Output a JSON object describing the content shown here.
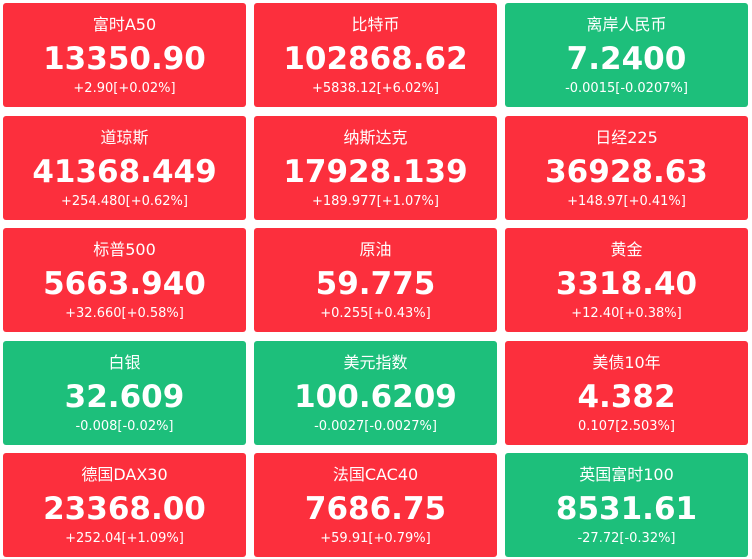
{
  "tiles": [
    {
      "name": "富时A50",
      "price": "13350.90",
      "change": "+2.90[+0.02%]",
      "color": "#fc2f3d"
    },
    {
      "name": "比特币",
      "price": "102868.62",
      "change": "+5838.12[+6.02%]",
      "color": "#fc2f3d"
    },
    {
      "name": "离岸人民币",
      "price": "7.2400",
      "change": "-0.0015[-0.0207%]",
      "color": "#1dbf7b"
    },
    {
      "name": "道琼斯",
      "price": "41368.449",
      "change": "+254.480[+0.62%]",
      "color": "#fc2f3d"
    },
    {
      "name": "纳斯达克",
      "price": "17928.139",
      "change": "+189.977[+1.07%]",
      "color": "#fc2f3d"
    },
    {
      "name": "日经225",
      "price": "36928.63",
      "change": "+148.97[+0.41%]",
      "color": "#fc2f3d"
    },
    {
      "name": "标普500",
      "price": "5663.940",
      "change": "+32.660[+0.58%]",
      "color": "#fc2f3d"
    },
    {
      "name": "原油",
      "price": "59.775",
      "change": "+0.255[+0.43%]",
      "color": "#fc2f3d"
    },
    {
      "name": "黄金",
      "price": "3318.40",
      "change": "+12.40[+0.38%]",
      "color": "#fc2f3d"
    },
    {
      "name": "白银",
      "price": "32.609",
      "change": "-0.008[-0.02%]",
      "color": "#1dbf7b"
    },
    {
      "name": "美元指数",
      "price": "100.6209",
      "change": "-0.0027[-0.0027%]",
      "color": "#1dbf7b"
    },
    {
      "name": "美债10年",
      "price": "4.382",
      "change": "0.107[2.503%]",
      "color": "#fc2f3d"
    },
    {
      "name": "德国DAX30",
      "price": "23368.00",
      "change": "+252.04[+1.09%]",
      "color": "#fc2f3d"
    },
    {
      "name": "法国CAC40",
      "price": "7686.75",
      "change": "+59.91[+0.79%]",
      "color": "#fc2f3d"
    },
    {
      "name": "英国富时100",
      "price": "8531.61",
      "change": "-27.72[-0.32%]",
      "color": "#1dbf7b"
    }
  ]
}
